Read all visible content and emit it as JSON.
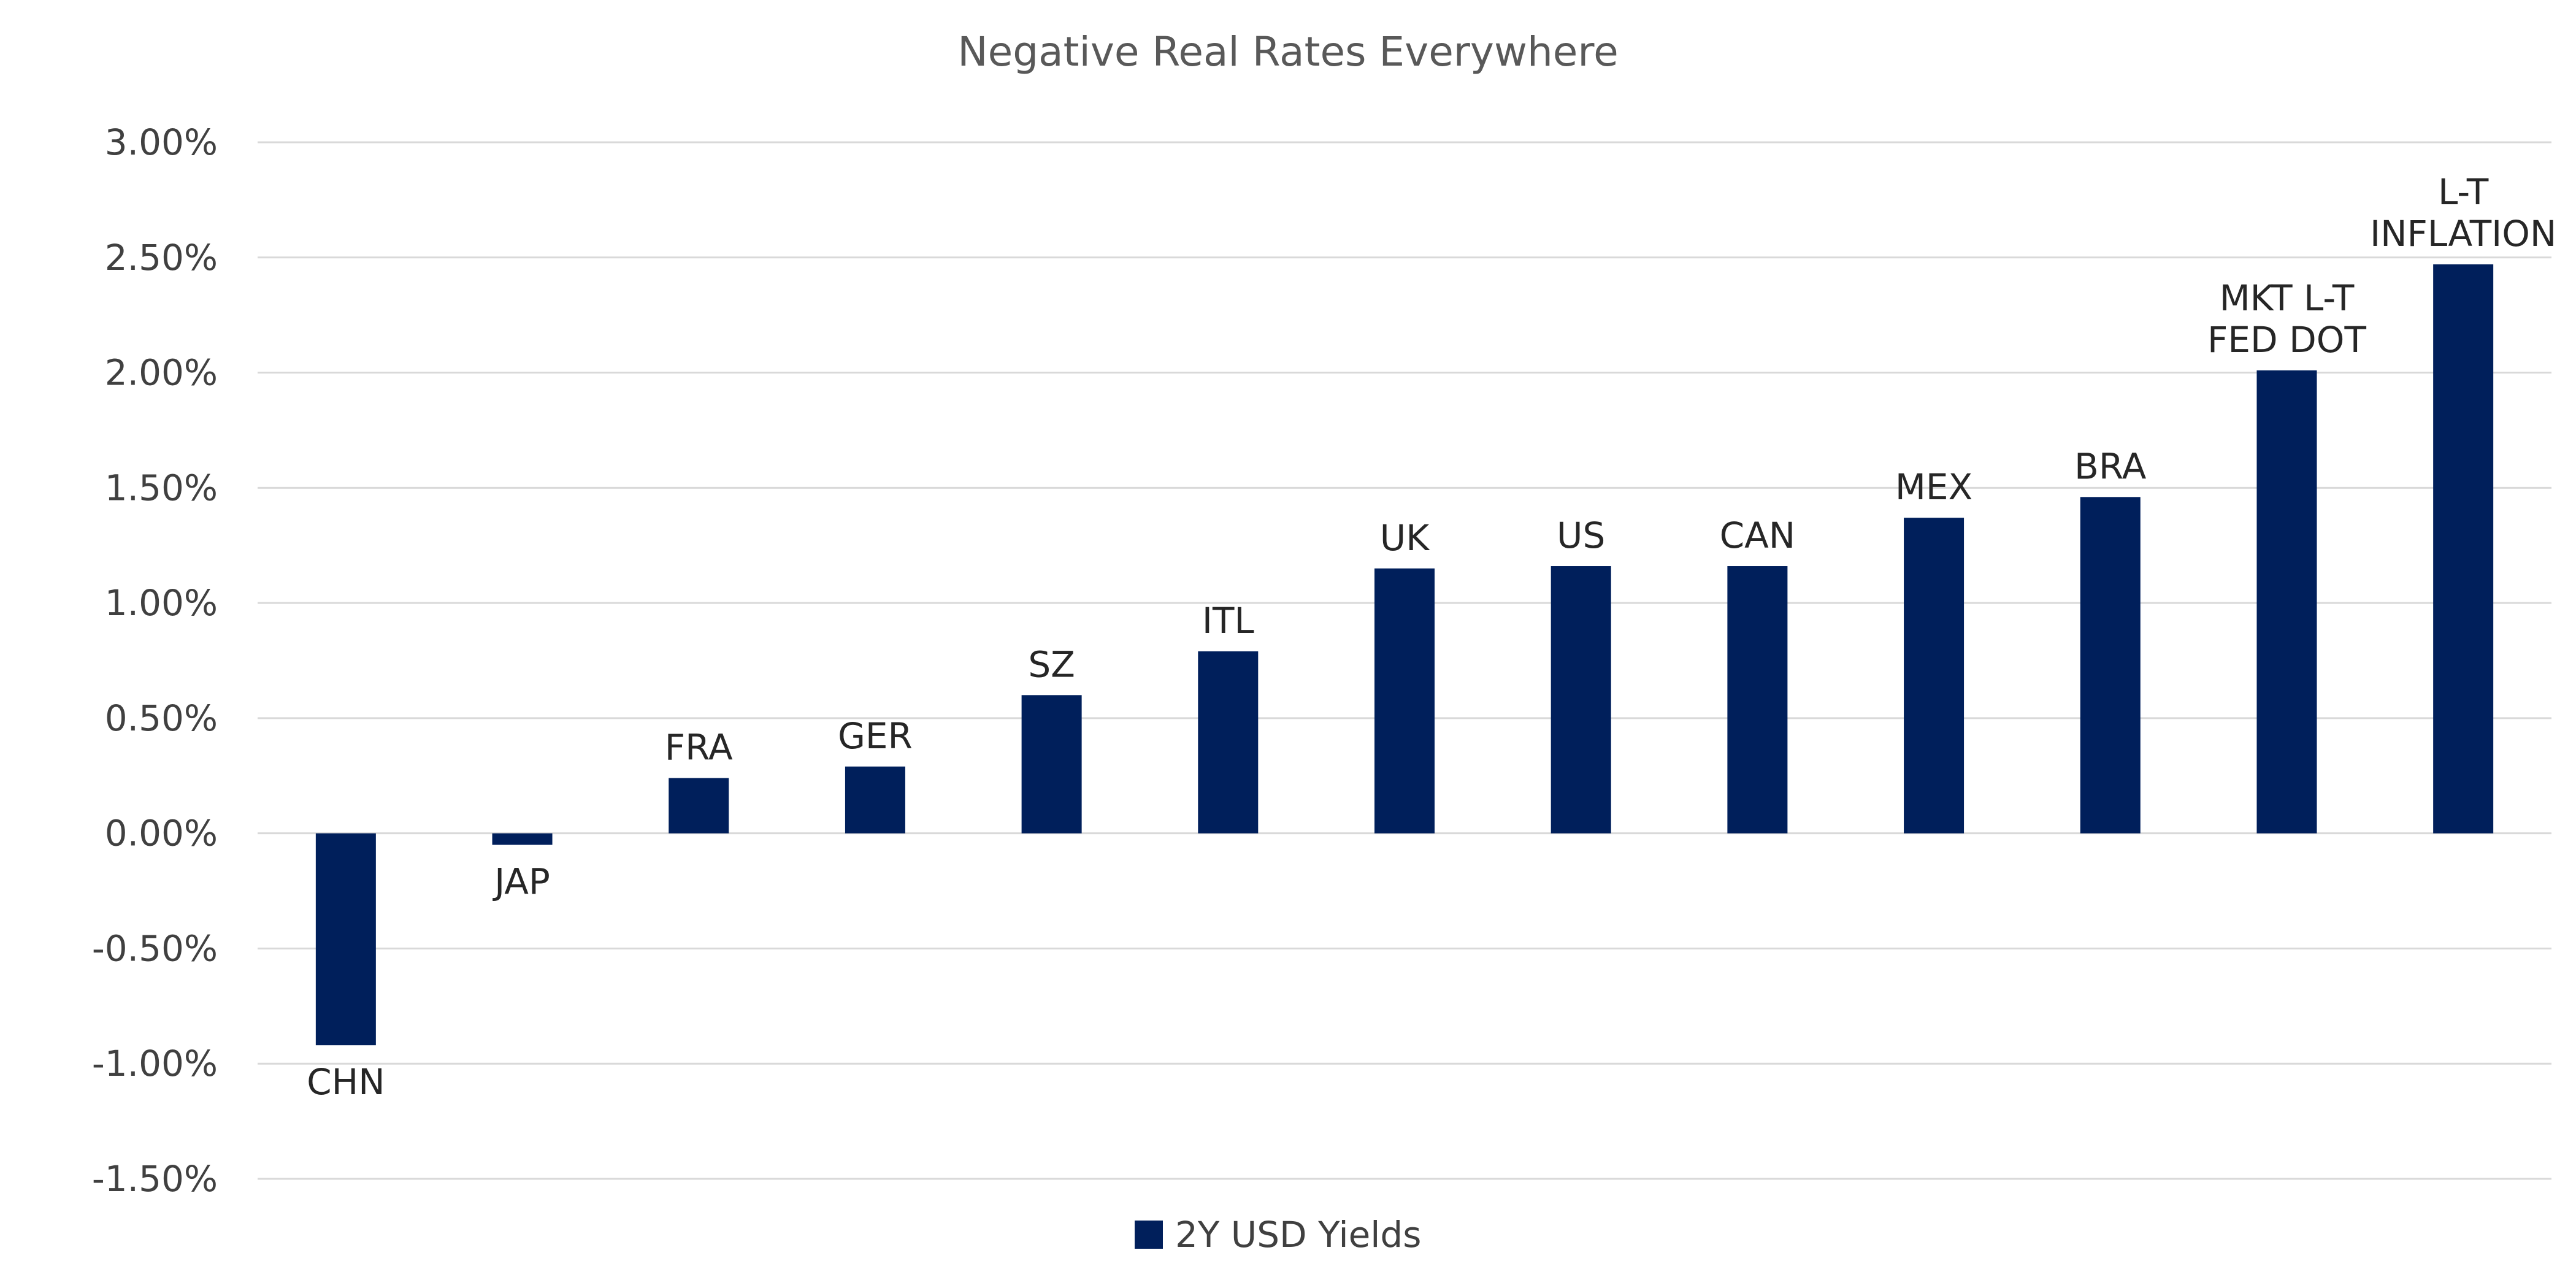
{
  "colors": {
    "bar": "#001f5b",
    "grid": "#d9d9d9",
    "text": "#404040",
    "title": "#595959"
  },
  "chart_data": {
    "type": "bar",
    "title": "Negative Real Rates Everywhere",
    "xlabel": "",
    "ylabel": "",
    "ylim": [
      -1.5,
      3.0
    ],
    "y_ticks": [
      3.0,
      2.5,
      2.0,
      1.5,
      1.0,
      0.5,
      0.0,
      -0.5,
      -1.0,
      -1.5
    ],
    "y_tick_labels": [
      "3.00%",
      "2.50%",
      "2.00%",
      "1.50%",
      "1.00%",
      "0.50%",
      "0.00%",
      "-0.50%",
      "-1.00%",
      "-1.50%"
    ],
    "grid": true,
    "legend": {
      "position": "bottom-center",
      "entries": [
        "2Y USD Yields"
      ]
    },
    "categories": [
      [
        "CHN"
      ],
      [
        "JAP"
      ],
      [
        "FRA"
      ],
      [
        "GER"
      ],
      [
        "SZ"
      ],
      [
        "ITL"
      ],
      [
        "UK"
      ],
      [
        "US"
      ],
      [
        "CAN"
      ],
      [
        "MEX"
      ],
      [
        "BRA"
      ],
      [
        "MKT L-T",
        "FED DOT"
      ],
      [
        "L-T",
        "INFLATION"
      ]
    ],
    "series": [
      {
        "name": "2Y USD Yields",
        "values": [
          -0.92,
          -0.05,
          0.24,
          0.29,
          0.6,
          0.79,
          1.15,
          1.16,
          1.16,
          1.37,
          1.46,
          2.01,
          2.47
        ]
      }
    ]
  }
}
